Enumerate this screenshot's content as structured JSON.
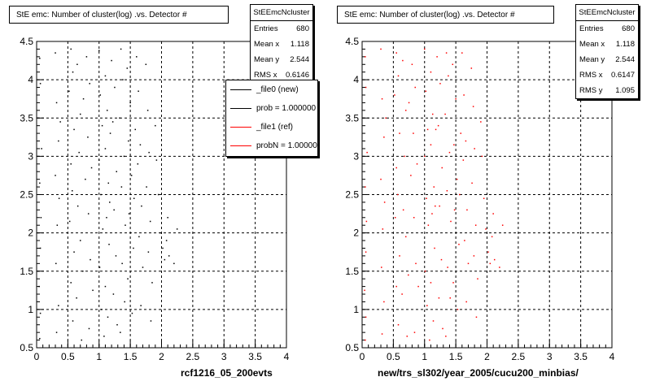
{
  "colors": {
    "left_points": "#000000",
    "right_points": "#ff0000",
    "frame": "#000000",
    "grid": "#000000"
  },
  "footer_text": "",
  "chart_data": [
    {
      "type": "scatter",
      "title": "StE emc: Number of cluster(log) .vs. Detector #",
      "xlabel": "rcf1216_05_200evts",
      "ylabel": "",
      "xlim": [
        0,
        4
      ],
      "ylim": [
        0.5,
        4.5
      ],
      "x_ticks": [
        "0",
        "0.5",
        "1",
        "1.5",
        "2",
        "2.5",
        "3",
        "3.5",
        "4"
      ],
      "y_ticks": [
        "0.5",
        "1",
        "1.5",
        "2",
        "2.5",
        "3",
        "3.5",
        "4",
        "4.5"
      ],
      "grid": true,
      "stats": {
        "name": "StEEmcNcluster",
        "rows": [
          {
            "label": "Entries",
            "value": "680"
          },
          {
            "label": "Mean x",
            "value": "1.118"
          },
          {
            "label": "Mean y",
            "value": "2.544"
          },
          {
            "label": "RMS x",
            "value": "0.6146"
          }
        ]
      },
      "legend": {
        "placement": "top-right",
        "entries": [
          {
            "label": "_file0 (new)",
            "color": "#000000"
          },
          {
            "label": "prob = 1.000000",
            "color": "#000000"
          },
          {
            "label": "_file1 (ref)",
            "color": "#ff0000"
          },
          {
            "label": "probN = 1.000000",
            "color": "#ff0000"
          }
        ]
      },
      "series": [
        {
          "color": "#000000",
          "points": [
            [
              0.05,
              4.28
            ],
            [
              0.06,
              3.95
            ],
            [
              0.08,
              3.1
            ],
            [
              0.05,
              2.65
            ],
            [
              0.07,
              2.2
            ],
            [
              0.06,
              1.8
            ],
            [
              0.04,
              1.3
            ],
            [
              0.06,
              0.95
            ],
            [
              0.05,
              0.62
            ],
            [
              0.3,
              4.35
            ],
            [
              0.32,
              3.7
            ],
            [
              0.35,
              3.2
            ],
            [
              0.3,
              2.75
            ],
            [
              0.33,
              2.1
            ],
            [
              0.31,
              1.6
            ],
            [
              0.35,
              1.05
            ],
            [
              0.32,
              0.7
            ],
            [
              0.38,
              3.45
            ],
            [
              0.36,
              2.45
            ],
            [
              0.55,
              4.4
            ],
            [
              0.58,
              4.1
            ],
            [
              0.52,
              3.85
            ],
            [
              0.6,
              3.35
            ],
            [
              0.55,
              2.9
            ],
            [
              0.57,
              2.55
            ],
            [
              0.53,
              2.15
            ],
            [
              0.6,
              1.75
            ],
            [
              0.55,
              1.35
            ],
            [
              0.58,
              0.85
            ],
            [
              0.65,
              4.2
            ],
            [
              0.7,
              3.55
            ],
            [
              0.68,
              3.05
            ],
            [
              0.66,
              2.35
            ],
            [
              0.7,
              1.9
            ],
            [
              0.64,
              1.15
            ],
            [
              0.72,
              0.6
            ],
            [
              0.75,
              3.75
            ],
            [
              0.78,
              2.7
            ],
            [
              0.74,
              1.5
            ],
            [
              0.8,
              4.3
            ],
            [
              0.85,
              3.95
            ],
            [
              0.82,
              3.25
            ],
            [
              0.88,
              2.85
            ],
            [
              0.83,
              2.25
            ],
            [
              0.86,
              1.65
            ],
            [
              0.9,
              1.25
            ],
            [
              0.84,
              0.75
            ],
            [
              1.0,
              4.38
            ],
            [
              1.02,
              3.8
            ],
            [
              1.05,
              3.4
            ],
            [
              1.0,
              2.95
            ],
            [
              1.03,
              2.5
            ],
            [
              1.06,
              2.05
            ],
            [
              1.01,
              1.55
            ],
            [
              1.04,
              1.0
            ],
            [
              1.08,
              0.65
            ],
            [
              1.1,
              4.05
            ],
            [
              1.13,
              3.6
            ],
            [
              1.1,
              3.1
            ],
            [
              1.15,
              2.65
            ],
            [
              1.12,
              2.2
            ],
            [
              1.16,
              1.85
            ],
            [
              1.1,
              1.3
            ],
            [
              1.14,
              0.9
            ],
            [
              1.18,
              3.3
            ],
            [
              1.17,
              2.4
            ],
            [
              1.2,
              4.25
            ],
            [
              1.25,
              3.9
            ],
            [
              1.22,
              3.45
            ],
            [
              1.28,
              2.8
            ],
            [
              1.24,
              2.3
            ],
            [
              1.27,
              1.7
            ],
            [
              1.23,
              1.2
            ],
            [
              1.29,
              0.8
            ],
            [
              1.35,
              4.4
            ],
            [
              1.38,
              4.0
            ],
            [
              1.33,
              3.5
            ],
            [
              1.4,
              3.0
            ],
            [
              1.36,
              2.6
            ],
            [
              1.42,
              2.1
            ],
            [
              1.37,
              1.6
            ],
            [
              1.41,
              1.1
            ],
            [
              1.34,
              0.7
            ],
            [
              1.45,
              4.15
            ],
            [
              1.5,
              3.7
            ],
            [
              1.47,
              3.2
            ],
            [
              1.52,
              2.75
            ],
            [
              1.48,
              2.25
            ],
            [
              1.55,
              1.8
            ],
            [
              1.46,
              1.4
            ],
            [
              1.53,
              0.95
            ],
            [
              1.58,
              3.35
            ],
            [
              1.56,
              2.45
            ],
            [
              1.6,
              4.3
            ],
            [
              1.63,
              3.85
            ],
            [
              1.66,
              3.15
            ],
            [
              1.62,
              2.9
            ],
            [
              1.68,
              2.35
            ],
            [
              1.64,
              1.95
            ],
            [
              1.7,
              1.55
            ],
            [
              1.67,
              1.05
            ],
            [
              1.75,
              4.2
            ],
            [
              1.78,
              3.6
            ],
            [
              1.8,
              3.05
            ],
            [
              1.76,
              2.6
            ],
            [
              1.82,
              2.15
            ],
            [
              1.79,
              1.75
            ],
            [
              1.85,
              1.35
            ],
            [
              1.83,
              0.85
            ],
            [
              1.9,
              3.4
            ],
            [
              1.92,
              2.95
            ],
            [
              1.95,
              2.5
            ],
            [
              1.98,
              2.0
            ],
            [
              2.02,
              1.8
            ],
            [
              2.05,
              1.65
            ],
            [
              2.08,
              1.9
            ],
            [
              2.1,
              2.2
            ],
            [
              2.12,
              1.7
            ],
            [
              2.2,
              1.6
            ],
            [
              2.25,
              2.05
            ]
          ]
        }
      ]
    },
    {
      "type": "scatter",
      "title": "StE emc: Number of cluster(log) .vs. Detector #",
      "xlabel": "new/trs_sl302/year_2005/cucu200_minbias/",
      "ylabel": "",
      "xlim": [
        0,
        4
      ],
      "ylim": [
        0.5,
        4.5
      ],
      "x_ticks": [
        "0",
        "0.5",
        "1",
        "1.5",
        "2",
        "2.5",
        "3",
        "3.5",
        "4"
      ],
      "y_ticks": [
        "0.5",
        "1",
        "1.5",
        "2",
        "2.5",
        "3",
        "3.5",
        "4",
        "4.5"
      ],
      "grid": true,
      "stats": {
        "name": "StEEmcNcluster",
        "rows": [
          {
            "label": "Entries",
            "value": "680"
          },
          {
            "label": "Mean x",
            "value": "1.118"
          },
          {
            "label": "Mean y",
            "value": "2.544"
          },
          {
            "label": "RMS x",
            "value": "0.6147"
          },
          {
            "label": "RMS y",
            "value": "1.095"
          }
        ]
      },
      "series": [
        {
          "color": "#ff0000",
          "points": [
            [
              0.05,
              4.3
            ],
            [
              0.06,
              3.9
            ],
            [
              0.08,
              3.05
            ],
            [
              0.05,
              2.6
            ],
            [
              0.07,
              2.15
            ],
            [
              0.06,
              1.75
            ],
            [
              0.04,
              1.25
            ],
            [
              0.06,
              0.9
            ],
            [
              0.05,
              0.6
            ],
            [
              0.3,
              4.4
            ],
            [
              0.32,
              3.75
            ],
            [
              0.35,
              3.25
            ],
            [
              0.3,
              2.7
            ],
            [
              0.33,
              2.05
            ],
            [
              0.31,
              1.55
            ],
            [
              0.35,
              1.1
            ],
            [
              0.32,
              0.68
            ],
            [
              0.38,
              3.5
            ],
            [
              0.36,
              2.4
            ],
            [
              0.55,
              4.35
            ],
            [
              0.58,
              4.05
            ],
            [
              0.52,
              3.8
            ],
            [
              0.6,
              3.3
            ],
            [
              0.55,
              2.85
            ],
            [
              0.57,
              2.5
            ],
            [
              0.53,
              2.2
            ],
            [
              0.6,
              1.7
            ],
            [
              0.55,
              1.3
            ],
            [
              0.58,
              0.8
            ],
            [
              0.65,
              4.25
            ],
            [
              0.7,
              3.6
            ],
            [
              0.68,
              3.0
            ],
            [
              0.66,
              2.3
            ],
            [
              0.7,
              1.95
            ],
            [
              0.64,
              1.2
            ],
            [
              0.72,
              0.65
            ],
            [
              0.75,
              3.7
            ],
            [
              0.78,
              2.75
            ],
            [
              0.74,
              1.45
            ],
            [
              0.8,
              4.2
            ],
            [
              0.85,
              3.9
            ],
            [
              0.82,
              3.3
            ],
            [
              0.88,
              2.9
            ],
            [
              0.83,
              2.2
            ],
            [
              0.86,
              1.6
            ],
            [
              0.9,
              1.3
            ],
            [
              0.84,
              0.7
            ],
            [
              1.0,
              4.4
            ],
            [
              1.02,
              3.85
            ],
            [
              1.05,
              3.35
            ],
            [
              1.0,
              3.0
            ],
            [
              1.03,
              2.45
            ],
            [
              1.06,
              2.1
            ],
            [
              1.01,
              1.5
            ],
            [
              1.04,
              1.05
            ],
            [
              1.08,
              0.6
            ],
            [
              1.1,
              4.1
            ],
            [
              1.13,
              3.55
            ],
            [
              1.1,
              3.15
            ],
            [
              1.15,
              2.6
            ],
            [
              1.12,
              2.25
            ],
            [
              1.16,
              1.8
            ],
            [
              1.1,
              1.35
            ],
            [
              1.14,
              0.85
            ],
            [
              1.18,
              3.35
            ],
            [
              1.17,
              2.35
            ],
            [
              1.2,
              4.3
            ],
            [
              1.25,
              3.95
            ],
            [
              1.22,
              3.4
            ],
            [
              1.28,
              2.85
            ],
            [
              1.24,
              2.35
            ],
            [
              1.27,
              1.65
            ],
            [
              1.23,
              1.15
            ],
            [
              1.29,
              0.75
            ],
            [
              1.35,
              4.35
            ],
            [
              1.38,
              4.05
            ],
            [
              1.33,
              3.55
            ],
            [
              1.4,
              3.05
            ],
            [
              1.36,
              2.55
            ],
            [
              1.42,
              2.15
            ],
            [
              1.37,
              1.55
            ],
            [
              1.41,
              1.15
            ],
            [
              1.34,
              0.65
            ],
            [
              1.45,
              4.2
            ],
            [
              1.5,
              3.75
            ],
            [
              1.47,
              3.15
            ],
            [
              1.52,
              2.7
            ],
            [
              1.48,
              2.3
            ],
            [
              1.55,
              1.85
            ],
            [
              1.46,
              1.35
            ],
            [
              1.53,
              1.0
            ],
            [
              1.58,
              3.3
            ],
            [
              1.56,
              2.5
            ],
            [
              1.6,
              4.35
            ],
            [
              1.63,
              3.8
            ],
            [
              1.66,
              3.2
            ],
            [
              1.62,
              2.95
            ],
            [
              1.68,
              2.3
            ],
            [
              1.64,
              1.9
            ],
            [
              1.7,
              1.6
            ],
            [
              1.67,
              1.1
            ],
            [
              1.75,
              4.15
            ],
            [
              1.78,
              3.65
            ],
            [
              1.8,
              3.1
            ],
            [
              1.76,
              2.65
            ],
            [
              1.82,
              2.1
            ],
            [
              1.79,
              1.7
            ],
            [
              1.85,
              1.4
            ],
            [
              1.83,
              0.9
            ],
            [
              1.9,
              3.45
            ],
            [
              1.92,
              3.0
            ],
            [
              1.95,
              2.45
            ],
            [
              1.98,
              2.05
            ],
            [
              2.02,
              1.75
            ],
            [
              2.05,
              1.6
            ],
            [
              2.08,
              1.95
            ],
            [
              2.1,
              2.25
            ],
            [
              2.12,
              1.65
            ],
            [
              2.2,
              1.55
            ],
            [
              2.25,
              2.1
            ]
          ]
        }
      ]
    }
  ]
}
